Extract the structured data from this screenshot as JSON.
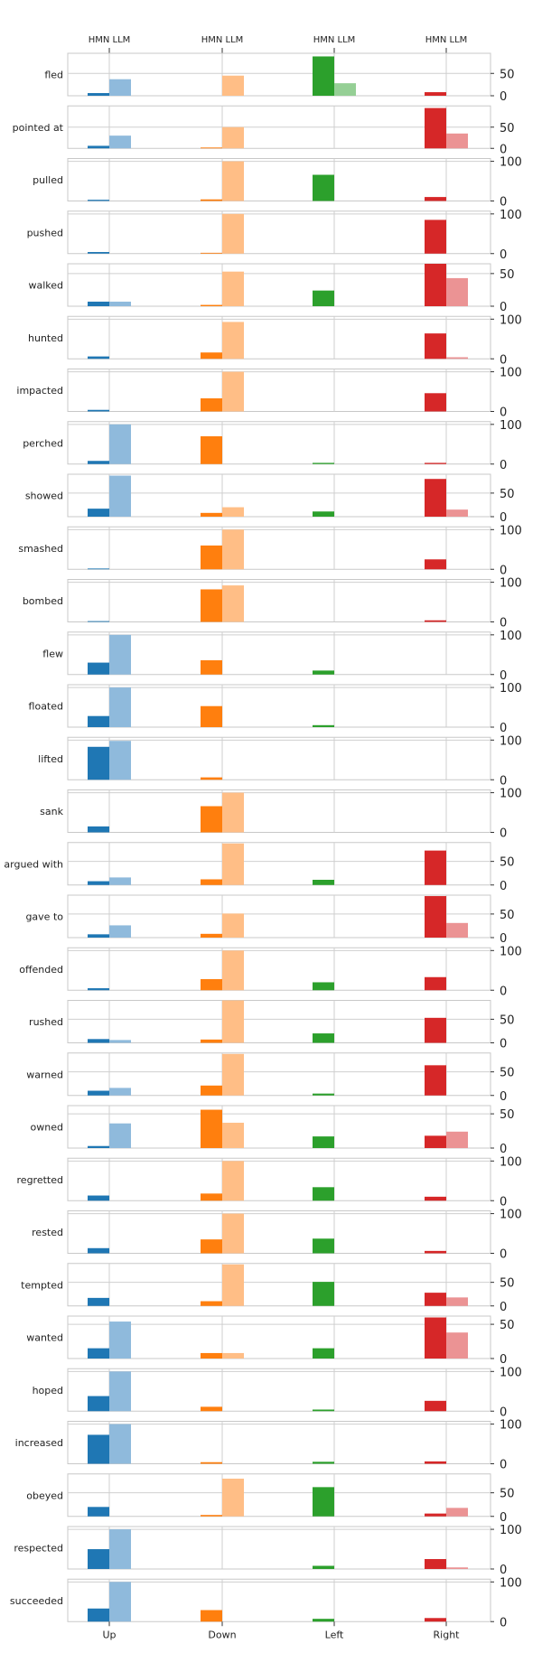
{
  "chart_data": {
    "type": "bar",
    "layout": "small-multiples (one panel per verb)",
    "categories": [
      "Up",
      "Down",
      "Left",
      "Right"
    ],
    "top_labels": [
      "HMN LLM",
      "HMN LLM",
      "HMN LLM",
      "HMN LLM"
    ],
    "series": [
      {
        "name": "HMN",
        "style": "solid"
      },
      {
        "name": "LLM",
        "style": "light"
      }
    ],
    "colors": {
      "Up": "#1f77b4",
      "Down": "#ff7f0e",
      "Left": "#2ca02c",
      "Right": "#d62728",
      "Up_light": "#8fbadc",
      "Down_light": "#ffbe86",
      "Left_light": "#95cf95",
      "Right_light": "#eb9394"
    },
    "grid": true,
    "panels": [
      {
        "verb": "fled",
        "ymax": 95,
        "ticks": [
          0,
          50
        ],
        "hmn": [
          6,
          0,
          88,
          8
        ],
        "llm": [
          37,
          45,
          28,
          0
        ]
      },
      {
        "verb": "pointed at",
        "ymax": 100,
        "ticks": [
          0,
          50
        ],
        "hmn": [
          6,
          2,
          0,
          95
        ],
        "llm": [
          30,
          50,
          0,
          35
        ]
      },
      {
        "verb": "pulled",
        "ymax": 107,
        "ticks": [
          0,
          100
        ],
        "hmn": [
          3,
          4,
          66,
          10
        ],
        "llm": [
          0,
          100,
          0,
          0
        ]
      },
      {
        "verb": "pushed",
        "ymax": 107,
        "ticks": [
          0,
          100
        ],
        "hmn": [
          4,
          2,
          0,
          85
        ],
        "llm": [
          0,
          100,
          0,
          0
        ]
      },
      {
        "verb": "walked",
        "ymax": 65,
        "ticks": [
          0,
          50
        ],
        "hmn": [
          7,
          2,
          24,
          67
        ],
        "llm": [
          7,
          53,
          0,
          43
        ]
      },
      {
        "verb": "hunted",
        "ymax": 107,
        "ticks": [
          0,
          100
        ],
        "hmn": [
          6,
          16,
          0,
          64
        ],
        "llm": [
          0,
          93,
          0,
          4
        ]
      },
      {
        "verb": "impacted",
        "ymax": 107,
        "ticks": [
          0,
          100
        ],
        "hmn": [
          4,
          33,
          0,
          46
        ],
        "llm": [
          0,
          100,
          0,
          0
        ]
      },
      {
        "verb": "perched",
        "ymax": 107,
        "ticks": [
          0,
          100
        ],
        "hmn": [
          8,
          70,
          3,
          3
        ],
        "llm": [
          100,
          0,
          0,
          0
        ]
      },
      {
        "verb": "showed",
        "ymax": 90,
        "ticks": [
          0,
          50
        ],
        "hmn": [
          17,
          8,
          11,
          80
        ],
        "llm": [
          87,
          20,
          0,
          15
        ]
      },
      {
        "verb": "smashed",
        "ymax": 107,
        "ticks": [
          0,
          100
        ],
        "hmn": [
          2,
          60,
          0,
          25
        ],
        "llm": [
          0,
          100,
          0,
          0
        ]
      },
      {
        "verb": "bombed",
        "ymax": 107,
        "ticks": [
          0,
          100
        ],
        "hmn": [
          2,
          82,
          0,
          4
        ],
        "llm": [
          0,
          92,
          0,
          0
        ]
      },
      {
        "verb": "flew",
        "ymax": 107,
        "ticks": [
          0,
          100
        ],
        "hmn": [
          30,
          36,
          10,
          0
        ],
        "llm": [
          100,
          0,
          0,
          0
        ]
      },
      {
        "verb": "floated",
        "ymax": 107,
        "ticks": [
          0,
          100
        ],
        "hmn": [
          28,
          53,
          5,
          0
        ],
        "llm": [
          100,
          0,
          0,
          0
        ]
      },
      {
        "verb": "lifted",
        "ymax": 107,
        "ticks": [
          0,
          100
        ],
        "hmn": [
          83,
          6,
          0,
          0
        ],
        "llm": [
          98,
          0,
          0,
          0
        ]
      },
      {
        "verb": "sank",
        "ymax": 107,
        "ticks": [
          0,
          100
        ],
        "hmn": [
          15,
          66,
          0,
          0
        ],
        "llm": [
          0,
          100,
          0,
          0
        ]
      },
      {
        "verb": "argued with",
        "ymax": 90,
        "ticks": [
          0,
          50
        ],
        "hmn": [
          8,
          12,
          11,
          73
        ],
        "llm": [
          16,
          88,
          0,
          0
        ]
      },
      {
        "verb": "gave to",
        "ymax": 90,
        "ticks": [
          0,
          50
        ],
        "hmn": [
          7,
          8,
          0,
          88
        ],
        "llm": [
          26,
          51,
          0,
          31
        ]
      },
      {
        "verb": "offended",
        "ymax": 107,
        "ticks": [
          0,
          100
        ],
        "hmn": [
          5,
          28,
          20,
          33
        ],
        "llm": [
          0,
          100,
          0,
          0
        ]
      },
      {
        "verb": "rushed",
        "ymax": 90,
        "ticks": [
          0,
          50
        ],
        "hmn": [
          8,
          7,
          20,
          53
        ],
        "llm": [
          6,
          92,
          0,
          0
        ]
      },
      {
        "verb": "warned",
        "ymax": 90,
        "ticks": [
          0,
          50
        ],
        "hmn": [
          10,
          21,
          4,
          64
        ],
        "llm": [
          16,
          88,
          0,
          0
        ]
      },
      {
        "verb": "owned",
        "ymax": 62,
        "ticks": [
          0,
          50
        ],
        "hmn": [
          3,
          56,
          17,
          18
        ],
        "llm": [
          36,
          37,
          0,
          24
        ]
      },
      {
        "verb": "regretted",
        "ymax": 107,
        "ticks": [
          0,
          100
        ],
        "hmn": [
          13,
          18,
          34,
          10
        ],
        "llm": [
          0,
          100,
          0,
          0
        ]
      },
      {
        "verb": "rested",
        "ymax": 107,
        "ticks": [
          0,
          100
        ],
        "hmn": [
          13,
          35,
          37,
          6
        ],
        "llm": [
          0,
          100,
          0,
          0
        ]
      },
      {
        "verb": "tempted",
        "ymax": 90,
        "ticks": [
          0,
          50
        ],
        "hmn": [
          17,
          10,
          51,
          28
        ],
        "llm": [
          0,
          88,
          0,
          18
        ]
      },
      {
        "verb": "wanted",
        "ymax": 62,
        "ticks": [
          0,
          50
        ],
        "hmn": [
          15,
          8,
          15,
          60
        ],
        "llm": [
          54,
          8,
          0,
          38
        ]
      },
      {
        "verb": "hoped",
        "ymax": 107,
        "ticks": [
          0,
          100
        ],
        "hmn": [
          38,
          11,
          4,
          26
        ],
        "llm": [
          100,
          0,
          0,
          0
        ]
      },
      {
        "verb": "increased",
        "ymax": 107,
        "ticks": [
          0,
          100
        ],
        "hmn": [
          73,
          4,
          5,
          6
        ],
        "llm": [
          100,
          0,
          0,
          0
        ]
      },
      {
        "verb": "obeyed",
        "ymax": 90,
        "ticks": [
          0,
          50
        ],
        "hmn": [
          20,
          3,
          62,
          6
        ],
        "llm": [
          0,
          80,
          0,
          18
        ]
      },
      {
        "verb": "respected",
        "ymax": 107,
        "ticks": [
          0,
          100
        ],
        "hmn": [
          50,
          0,
          8,
          25
        ],
        "llm": [
          100,
          0,
          0,
          4
        ]
      },
      {
        "verb": "succeeded",
        "ymax": 107,
        "ticks": [
          0,
          100
        ],
        "hmn": [
          33,
          29,
          7,
          9
        ],
        "llm": [
          100,
          0,
          0,
          0
        ]
      }
    ]
  }
}
